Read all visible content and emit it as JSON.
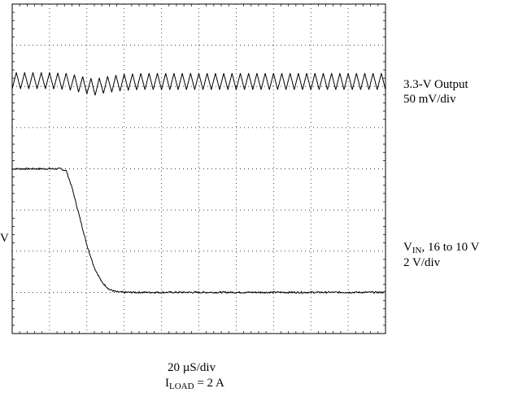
{
  "chart_data": {
    "type": "line",
    "title": "",
    "grid": true,
    "divisions": {
      "x": 10,
      "y": 8
    },
    "time_per_div": "20 µS/div",
    "load": {
      "prefix": "I",
      "subscript": "LOAD",
      "value": " = 2 A"
    },
    "series": [
      {
        "label": {
          "line1": "3.3-V Output",
          "line2": "50 mV/div"
        },
        "x_div": [
          0,
          0.5,
          1.0,
          1.5,
          2.0,
          2.2,
          2.5,
          3.0,
          3.5,
          4.0,
          5.0,
          6.0,
          7.0,
          8.0,
          9.0,
          10.0
        ],
        "y_div": [
          6.14,
          6.14,
          6.14,
          6.12,
          6.02,
          5.98,
          6.04,
          6.1,
          6.12,
          6.12,
          6.12,
          6.12,
          6.12,
          6.12,
          6.12,
          6.12
        ],
        "ripple_amplitude_div": 0.2,
        "ripple_periods_per_div": 4.5
      },
      {
        "label": {
          "prefix": "V",
          "subscript": "IN",
          "line1_rest": ", 16 to 10 V",
          "line2": "2 V/div"
        },
        "left_marker": "V",
        "x_div": [
          0,
          0.5,
          1.0,
          1.3,
          1.45,
          1.6,
          1.8,
          2.0,
          2.2,
          2.4,
          2.6,
          2.8,
          3.0,
          3.5,
          4.0,
          5.0,
          6.0,
          7.0,
          8.0,
          9.0,
          10.0
        ],
        "y_div": [
          4.0,
          4.0,
          4.0,
          4.0,
          3.95,
          3.55,
          2.85,
          2.15,
          1.6,
          1.25,
          1.07,
          1.01,
          1.0,
          1.0,
          1.0,
          1.0,
          1.0,
          1.0,
          1.0,
          1.0,
          1.0
        ],
        "noise_div": 0.02
      }
    ]
  }
}
